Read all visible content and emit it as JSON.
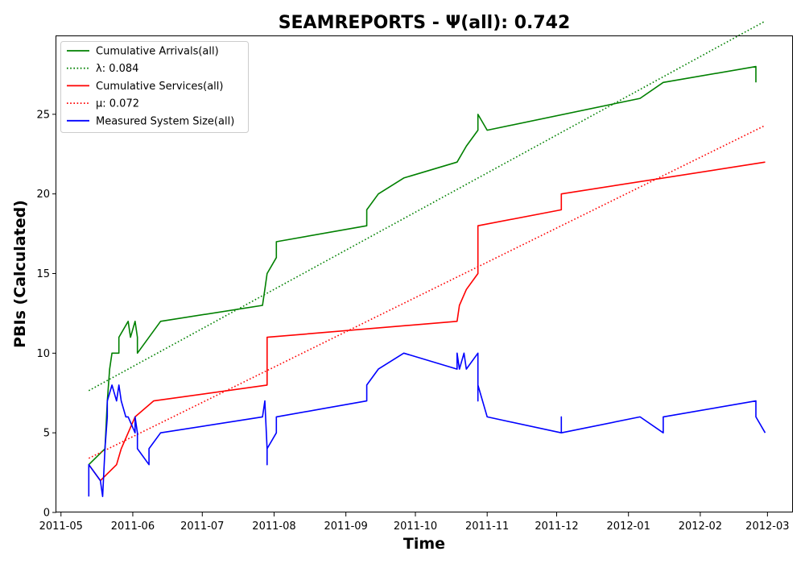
{
  "chart_data": {
    "type": "line",
    "title": "SEAMREPORTS -  Ψ(all): 0.742",
    "xlabel": "Time",
    "ylabel": "PBIs (Calculated)",
    "xlim": [
      "2011-04-29",
      "2012-03-12"
    ],
    "ylim": [
      0,
      29.9
    ],
    "xticks": [
      "2011-05",
      "2011-06",
      "2011-07",
      "2011-08",
      "2011-09",
      "2011-10",
      "2011-11",
      "2011-12",
      "2012-01",
      "2012-02",
      "2012-03"
    ],
    "yticks": [
      0,
      5,
      10,
      15,
      20,
      25
    ],
    "legend_position": "upper-left",
    "grid": false,
    "series": [
      {
        "name": "Cumulative Arrivals(all)",
        "color": "#008000",
        "style": "solid",
        "x": [
          "2011-05-13",
          "2011-05-20",
          "2011-05-21",
          "2011-05-22",
          "2011-05-23",
          "2011-05-26",
          "2011-05-26",
          "2011-05-30",
          "2011-05-31",
          "2011-06-02",
          "2011-06-03",
          "2011-06-03",
          "2011-06-13",
          "2011-07-27",
          "2011-07-28",
          "2011-07-29",
          "2011-08-02",
          "2011-08-02",
          "2011-09-10",
          "2011-09-10",
          "2011-09-15",
          "2011-09-26",
          "2011-10-19",
          "2011-10-23",
          "2011-10-28",
          "2011-10-28",
          "2011-11-01",
          "2012-01-06",
          "2012-01-16",
          "2012-02-25",
          "2012-02-25"
        ],
        "y": [
          3,
          4,
          7,
          9,
          10,
          10,
          11,
          12,
          11,
          12,
          11,
          10,
          12,
          13,
          14,
          15,
          16,
          17,
          18,
          19,
          20,
          21,
          22,
          23,
          24,
          25,
          24,
          26,
          27,
          28,
          27
        ]
      },
      {
        "name": "λ: 0.084",
        "color": "#008000",
        "style": "dotted",
        "x": [
          "2011-05-13",
          "2012-02-29"
        ],
        "y": [
          7.65,
          30.85
        ]
      },
      {
        "name": "Cumulative Services(all)",
        "color": "#ff0000",
        "style": "solid",
        "x": [
          "2011-05-13",
          "2011-05-18",
          "2011-05-25",
          "2011-05-27",
          "2011-06-02",
          "2011-06-10",
          "2011-07-29",
          "2011-07-29",
          "2011-10-19",
          "2011-10-20",
          "2011-10-23",
          "2011-10-28",
          "2011-10-28",
          "2011-12-03",
          "2011-12-03",
          "2012-02-29"
        ],
        "y": [
          3,
          2,
          3,
          4,
          6,
          7,
          8,
          11,
          12,
          13,
          14,
          15,
          18,
          19,
          20,
          22
        ]
      },
      {
        "name": "μ: 0.072",
        "color": "#ff0000",
        "style": "dotted",
        "x": [
          "2011-05-13",
          "2012-02-29"
        ],
        "y": [
          3.4,
          24.3
        ]
      },
      {
        "name": "Measured System Size(all)",
        "color": "#0000ff",
        "style": "solid",
        "x": [
          "2011-05-13",
          "2011-05-13",
          "2011-05-13",
          "2011-05-18",
          "2011-05-19",
          "2011-05-20",
          "2011-05-21",
          "2011-05-21",
          "2011-05-23",
          "2011-05-25",
          "2011-05-26",
          "2011-05-27",
          "2011-05-29",
          "2011-05-30",
          "2011-06-02",
          "2011-06-02",
          "2011-06-03",
          "2011-06-03",
          "2011-06-08",
          "2011-06-08",
          "2011-06-13",
          "2011-07-27",
          "2011-07-28",
          "2011-07-29",
          "2011-07-29",
          "2011-07-29",
          "2011-08-02",
          "2011-08-02",
          "2011-09-10",
          "2011-09-10",
          "2011-09-15",
          "2011-09-26",
          "2011-10-19",
          "2011-10-19",
          "2011-10-20",
          "2011-10-22",
          "2011-10-23",
          "2011-10-28",
          "2011-10-28",
          "2011-10-28",
          "2011-11-01",
          "2011-12-03",
          "2011-12-03",
          "2011-12-03",
          "2012-01-06",
          "2012-01-16",
          "2012-01-16",
          "2012-02-25",
          "2012-02-25",
          "2012-02-29"
        ],
        "y": [
          1,
          3,
          3,
          2,
          1,
          4,
          6,
          7,
          8,
          7,
          8,
          7,
          6,
          6,
          5,
          6,
          5,
          4,
          3,
          4,
          5,
          6,
          7,
          4,
          3,
          4,
          5,
          6,
          7,
          8,
          9,
          10,
          9,
          10,
          9,
          10,
          9,
          10,
          7,
          8,
          6,
          5,
          6,
          5,
          6,
          5,
          6,
          7,
          6,
          5
        ]
      }
    ]
  }
}
